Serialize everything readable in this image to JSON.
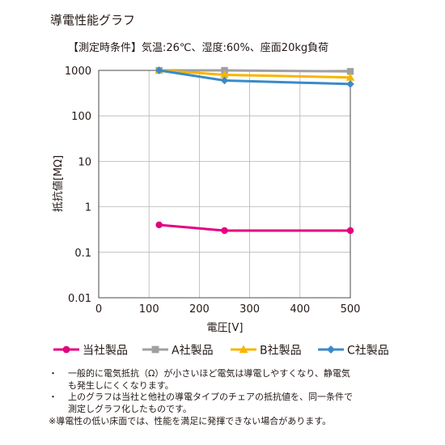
{
  "header": {
    "title": "導電性能グラフ",
    "conditions": "【測定時条件】気温:26℃、湿度:60%、座面20kg負荷"
  },
  "chart_data": {
    "type": "line",
    "xlabel": "電圧[V]",
    "ylabel": "抵抗値[MΩ]",
    "xlim": [
      0,
      500
    ],
    "ylim": [
      0.01,
      1000
    ],
    "yscale": "log",
    "xticks": [
      0,
      100,
      200,
      300,
      400,
      500
    ],
    "xtick_labels": [
      "0",
      "100",
      "200",
      "300",
      "400",
      "500"
    ],
    "yticks": [
      0.01,
      0.1,
      1,
      10,
      100,
      1000
    ],
    "ytick_labels": [
      "0.01",
      "0.1",
      "1",
      "10",
      "100",
      "1000"
    ],
    "grid": true,
    "legend_position": "bottom",
    "series": [
      {
        "name": "当社製品",
        "color": "#e4007f",
        "marker": "circle",
        "x": [
          120,
          250,
          500
        ],
        "y": [
          0.4,
          0.3,
          0.3
        ]
      },
      {
        "name": "A社製品",
        "color": "#a0a0a0",
        "marker": "square",
        "x": [
          120,
          250,
          500
        ],
        "y": [
          1000,
          1000,
          950
        ]
      },
      {
        "name": "B社製品",
        "color": "#f8b500",
        "marker": "triangle",
        "x": [
          120,
          250,
          500
        ],
        "y": [
          1000,
          800,
          700
        ]
      },
      {
        "name": "C社製品",
        "color": "#3a8ac9",
        "marker": "diamond",
        "x": [
          120,
          250,
          500
        ],
        "y": [
          1000,
          600,
          500
        ]
      }
    ]
  },
  "notes": {
    "bullet": "・",
    "items": [
      {
        "lines": [
          "一般的に電気抵抗（Ω）が小さいほど電気は導電しやすくなり、静電気",
          "も発生しにくくなります。"
        ]
      },
      {
        "lines": [
          "上のグラフは当社と他社の導電タイプのチェアの抵抗値を、同一条件で",
          "測定しグラフ化したものです。"
        ]
      }
    ],
    "footnote": "※導電性の低い床面では、性能を満足に発揮できない場合があります。"
  }
}
